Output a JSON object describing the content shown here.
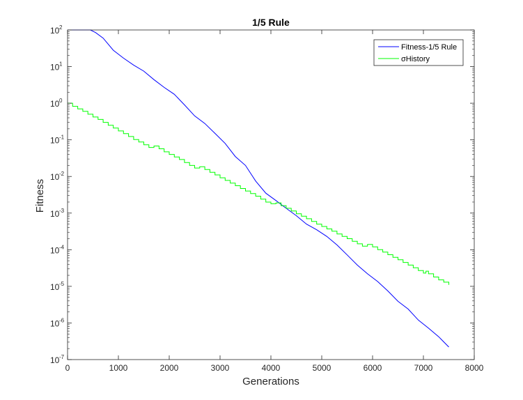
{
  "chart_data": {
    "type": "line",
    "title": "1/5 Rule",
    "xlabel": "Generations",
    "ylabel": "Fitness",
    "xlim": [
      0,
      8000
    ],
    "ylim": [
      1e-07,
      100
    ],
    "yscale": "log",
    "grid": false,
    "legend_position": "top-right",
    "x_ticks": [
      {
        "value": 0,
        "label": "0"
      },
      {
        "value": 1000,
        "label": "1000"
      },
      {
        "value": 2000,
        "label": "2000"
      },
      {
        "value": 3000,
        "label": "3000"
      },
      {
        "value": 4000,
        "label": "4000"
      },
      {
        "value": 5000,
        "label": "5000"
      },
      {
        "value": 6000,
        "label": "6000"
      },
      {
        "value": 7000,
        "label": "7000"
      },
      {
        "value": 8000,
        "label": "8000"
      }
    ],
    "y_ticks": [
      {
        "value": 100,
        "base": "10",
        "exp": "2"
      },
      {
        "value": 10,
        "base": "10",
        "exp": "1"
      },
      {
        "value": 1,
        "base": "10",
        "exp": "0"
      },
      {
        "value": 0.1,
        "base": "10",
        "exp": "-1"
      },
      {
        "value": 0.01,
        "base": "10",
        "exp": "-2"
      },
      {
        "value": 0.001,
        "base": "10",
        "exp": "-3"
      },
      {
        "value": 0.0001,
        "base": "10",
        "exp": "-4"
      },
      {
        "value": 1e-05,
        "base": "10",
        "exp": "-5"
      },
      {
        "value": 1e-06,
        "base": "10",
        "exp": "-6"
      },
      {
        "value": 1e-07,
        "base": "10",
        "exp": "-7"
      }
    ],
    "series": [
      {
        "name": "Fitness-1/5 Rule",
        "color": "#0000ff",
        "style": "line",
        "points": [
          [
            0,
            100
          ],
          [
            200,
            100
          ],
          [
            450,
            100
          ],
          [
            550,
            85
          ],
          [
            700,
            60
          ],
          [
            900,
            28
          ],
          [
            1100,
            17
          ],
          [
            1300,
            11
          ],
          [
            1500,
            7.5
          ],
          [
            1700,
            4.4
          ],
          [
            1900,
            2.7
          ],
          [
            2100,
            1.75
          ],
          [
            2300,
            0.9
          ],
          [
            2500,
            0.45
          ],
          [
            2700,
            0.28
          ],
          [
            2900,
            0.15
          ],
          [
            3100,
            0.08
          ],
          [
            3300,
            0.035
          ],
          [
            3500,
            0.02
          ],
          [
            3700,
            0.0075
          ],
          [
            3900,
            0.0035
          ],
          [
            4100,
            0.0022
          ],
          [
            4300,
            0.00135
          ],
          [
            4500,
            0.00085
          ],
          [
            4700,
            0.0005
          ],
          [
            4900,
            0.00035
          ],
          [
            5100,
            0.00023
          ],
          [
            5300,
            0.000135
          ],
          [
            5500,
            7.2e-05
          ],
          [
            5700,
            3.8e-05
          ],
          [
            5900,
            2.2e-05
          ],
          [
            6100,
            1.35e-05
          ],
          [
            6300,
            7.5e-06
          ],
          [
            6500,
            3.9e-06
          ],
          [
            6700,
            2.4e-06
          ],
          [
            6900,
            1.2e-06
          ],
          [
            7100,
            7.2e-07
          ],
          [
            7300,
            4.2e-07
          ],
          [
            7500,
            2.2e-07
          ]
        ]
      },
      {
        "name": "σHistory",
        "color": "#00ff00",
        "style": "step",
        "points": [
          [
            0,
            1.0
          ],
          [
            100,
            0.82
          ],
          [
            200,
            0.7
          ],
          [
            300,
            0.6
          ],
          [
            400,
            0.5
          ],
          [
            500,
            0.42
          ],
          [
            600,
            0.36
          ],
          [
            700,
            0.3
          ],
          [
            800,
            0.25
          ],
          [
            900,
            0.21
          ],
          [
            1000,
            0.175
          ],
          [
            1100,
            0.148
          ],
          [
            1200,
            0.123
          ],
          [
            1300,
            0.102
          ],
          [
            1400,
            0.087
          ],
          [
            1500,
            0.073
          ],
          [
            1600,
            0.062
          ],
          [
            1700,
            0.068
          ],
          [
            1800,
            0.057
          ],
          [
            1900,
            0.047
          ],
          [
            2000,
            0.04
          ],
          [
            2100,
            0.034
          ],
          [
            2200,
            0.029
          ],
          [
            2300,
            0.024
          ],
          [
            2400,
            0.02
          ],
          [
            2500,
            0.017
          ],
          [
            2600,
            0.0185
          ],
          [
            2700,
            0.0155
          ],
          [
            2800,
            0.013
          ],
          [
            2900,
            0.011
          ],
          [
            3000,
            0.0092
          ],
          [
            3100,
            0.0078
          ],
          [
            3200,
            0.0066
          ],
          [
            3300,
            0.0056
          ],
          [
            3400,
            0.0047
          ],
          [
            3500,
            0.004
          ],
          [
            3600,
            0.0034
          ],
          [
            3700,
            0.0029
          ],
          [
            3800,
            0.0024
          ],
          [
            3900,
            0.002
          ],
          [
            4000,
            0.0018
          ],
          [
            4100,
            0.0019
          ],
          [
            4200,
            0.0016
          ],
          [
            4300,
            0.00135
          ],
          [
            4400,
            0.00114
          ],
          [
            4500,
            0.00096
          ],
          [
            4600,
            0.00082
          ],
          [
            4700,
            0.0007
          ],
          [
            4800,
            0.00059
          ],
          [
            4900,
            0.0005
          ],
          [
            5000,
            0.00043
          ],
          [
            5100,
            0.00037
          ],
          [
            5200,
            0.00032
          ],
          [
            5300,
            0.00027
          ],
          [
            5400,
            0.00023
          ],
          [
            5500,
            0.0002
          ],
          [
            5600,
            0.00017
          ],
          [
            5700,
            0.000145
          ],
          [
            5800,
            0.000125
          ],
          [
            5900,
            0.00014
          ],
          [
            6000,
            0.00012
          ],
          [
            6100,
            0.0001
          ],
          [
            6200,
            8.6e-05
          ],
          [
            6300,
            7.3e-05
          ],
          [
            6400,
            6.2e-05
          ],
          [
            6500,
            5.3e-05
          ],
          [
            6600,
            4.5e-05
          ],
          [
            6700,
            3.8e-05
          ],
          [
            6800,
            3.2e-05
          ],
          [
            6900,
            2.7e-05
          ],
          [
            7000,
            2.3e-05
          ],
          [
            7050,
            2.6e-05
          ],
          [
            7100,
            2.2e-05
          ],
          [
            7200,
            1.8e-05
          ],
          [
            7300,
            1.5e-05
          ],
          [
            7400,
            1.3e-05
          ],
          [
            7500,
            1.1e-05
          ]
        ]
      }
    ]
  }
}
